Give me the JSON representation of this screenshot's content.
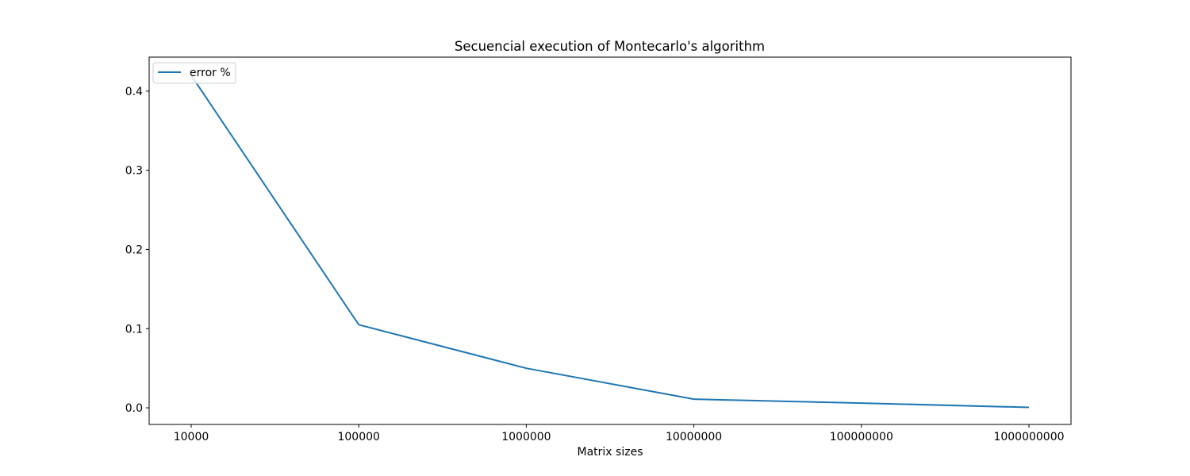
{
  "chart_data": {
    "type": "line",
    "title": "Secuencial execution of Montecarlo's algorithm",
    "xlabel": "Matrix sizes",
    "ylabel": "",
    "categories": [
      "10000",
      "100000",
      "1000000",
      "10000000",
      "100000000",
      "1000000000"
    ],
    "series": [
      {
        "name": "error %",
        "color": "#1f77b4",
        "values": [
          0.42,
          0.105,
          0.05,
          0.011,
          0.006,
          0.0005
        ]
      }
    ],
    "ylim": [
      -0.021,
      0.443
    ],
    "yticks": [
      "0.0",
      "0.1",
      "0.2",
      "0.3",
      "0.4"
    ],
    "ytick_values": [
      0.0,
      0.1,
      0.2,
      0.3,
      0.4
    ],
    "grid": false,
    "legend_position": "top-left"
  }
}
